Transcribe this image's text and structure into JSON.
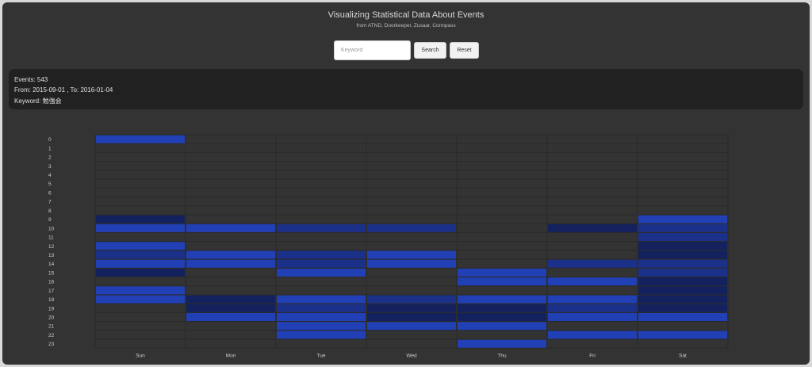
{
  "header": {
    "title": "Visualizing Statistical Data About Events",
    "subtitle": "from ATND, Doorkeeper, Zusaar, Connpass"
  },
  "search": {
    "placeholder": "Keyword",
    "value": "",
    "search_label": "Search",
    "reset_label": "Reset"
  },
  "info": {
    "events": "Events: 543",
    "range": "From: 2015-09-01 , To: 2016-01-04",
    "keyword": "Keyword: 勉強会"
  },
  "colors": {
    "background": "#333333",
    "info_panel": "#212121",
    "grid": "#2a2a2a",
    "level1": "#13225e",
    "level2": "#1b3189",
    "level3": "#2140b5"
  },
  "chart_data": {
    "type": "heatmap",
    "x_categories": [
      "Sun",
      "Mon",
      "Tue",
      "Wed",
      "Thu",
      "Fri",
      "Sat"
    ],
    "y_categories": [
      "0",
      "1",
      "2",
      "3",
      "4",
      "5",
      "6",
      "7",
      "8",
      "9",
      "10",
      "11",
      "12",
      "13",
      "14",
      "15",
      "16",
      "17",
      "18",
      "19",
      "20",
      "21",
      "22",
      "23"
    ],
    "grid": true,
    "cells": [
      [
        0,
        0,
        3
      ],
      [
        0,
        9,
        1
      ],
      [
        0,
        10,
        3
      ],
      [
        0,
        12,
        3
      ],
      [
        0,
        13,
        2
      ],
      [
        0,
        14,
        3
      ],
      [
        0,
        15,
        1
      ],
      [
        0,
        17,
        3
      ],
      [
        0,
        18,
        3
      ],
      [
        1,
        10,
        3
      ],
      [
        1,
        13,
        3
      ],
      [
        1,
        14,
        3
      ],
      [
        1,
        18,
        1
      ],
      [
        1,
        19,
        1
      ],
      [
        1,
        20,
        3
      ],
      [
        2,
        10,
        2
      ],
      [
        2,
        13,
        2
      ],
      [
        2,
        14,
        2
      ],
      [
        2,
        15,
        3
      ],
      [
        2,
        18,
        3
      ],
      [
        2,
        19,
        2
      ],
      [
        2,
        20,
        3
      ],
      [
        2,
        21,
        3
      ],
      [
        2,
        22,
        3
      ],
      [
        3,
        10,
        2
      ],
      [
        3,
        13,
        3
      ],
      [
        3,
        14,
        3
      ],
      [
        3,
        18,
        2
      ],
      [
        3,
        19,
        1
      ],
      [
        3,
        20,
        1
      ],
      [
        3,
        21,
        3
      ],
      [
        4,
        15,
        3
      ],
      [
        4,
        16,
        3
      ],
      [
        4,
        18,
        3
      ],
      [
        4,
        19,
        1
      ],
      [
        4,
        20,
        1
      ],
      [
        4,
        21,
        3
      ],
      [
        4,
        23,
        3
      ],
      [
        5,
        10,
        1
      ],
      [
        5,
        14,
        2
      ],
      [
        5,
        16,
        3
      ],
      [
        5,
        18,
        3
      ],
      [
        5,
        19,
        2
      ],
      [
        5,
        20,
        3
      ],
      [
        5,
        22,
        3
      ],
      [
        6,
        9,
        3
      ],
      [
        6,
        10,
        2
      ],
      [
        6,
        11,
        2
      ],
      [
        6,
        12,
        1
      ],
      [
        6,
        13,
        1
      ],
      [
        6,
        14,
        2
      ],
      [
        6,
        15,
        2
      ],
      [
        6,
        16,
        1
      ],
      [
        6,
        17,
        1
      ],
      [
        6,
        18,
        1
      ],
      [
        6,
        19,
        1
      ],
      [
        6,
        20,
        3
      ],
      [
        6,
        22,
        3
      ]
    ]
  }
}
